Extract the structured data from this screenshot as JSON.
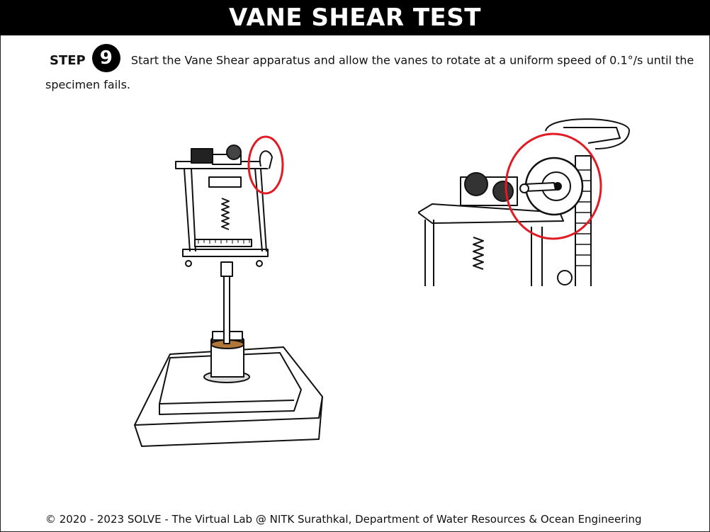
{
  "header": {
    "title": "VANE SHEAR TEST"
  },
  "step": {
    "label": "STEP",
    "number": "9",
    "instruction": "Start the Vane Shear apparatus and allow the vanes to rotate at a uniform speed of 0.1°/s until the specimen fails."
  },
  "figures": {
    "apparatus": {
      "name": "vane-shear-apparatus"
    },
    "detail": {
      "name": "handwheel-closeup"
    },
    "highlight_color": "#e01b24"
  },
  "footer": {
    "copyright": "© 2020 - 2023 SOLVE - The Virtual Lab @ NITK Surathkal, Department of Water Resources & Ocean Engineering"
  }
}
